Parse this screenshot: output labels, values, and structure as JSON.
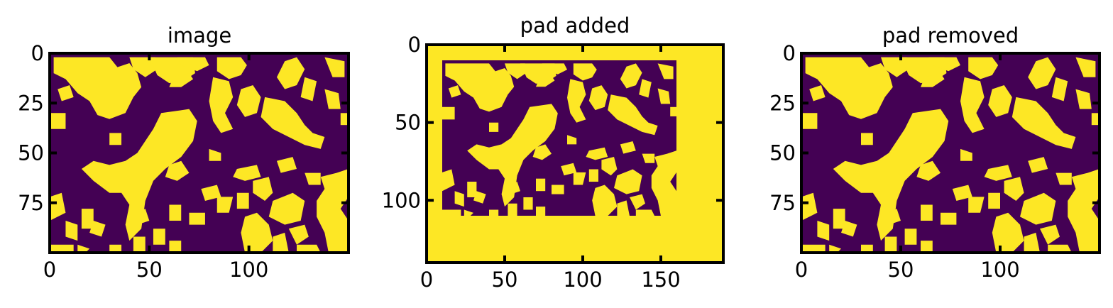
{
  "chart_data": [
    {
      "type": "heatmap",
      "title": "image",
      "xlim": [
        0,
        150
      ],
      "ylim": [
        100,
        0
      ],
      "xticks": [
        0,
        50,
        100
      ],
      "yticks": [
        0,
        25,
        50,
        75
      ],
      "colormap": "viridis-binary",
      "colors": {
        "low": "#440154",
        "high": "#fde725"
      },
      "content": "binary blob pattern"
    },
    {
      "type": "heatmap",
      "title": "pad added",
      "xlim": [
        0,
        190
      ],
      "ylim": [
        140,
        0
      ],
      "xticks": [
        0,
        50,
        100,
        150
      ],
      "yticks": [
        0,
        50,
        100
      ],
      "colormap": "viridis-binary",
      "colors": {
        "low": "#440154",
        "high": "#fde725"
      },
      "content": "image padded with ones",
      "inner_region": {
        "x": [
          10,
          160
        ],
        "y": [
          10,
          110
        ]
      }
    },
    {
      "type": "heatmap",
      "title": "pad removed",
      "xlim": [
        0,
        150
      ],
      "ylim": [
        100,
        0
      ],
      "xticks": [
        0,
        50,
        100
      ],
      "yticks": [
        0,
        25,
        50,
        75
      ],
      "colormap": "viridis-binary",
      "colors": {
        "low": "#440154",
        "high": "#fde725"
      },
      "content": "binary blob pattern"
    }
  ]
}
